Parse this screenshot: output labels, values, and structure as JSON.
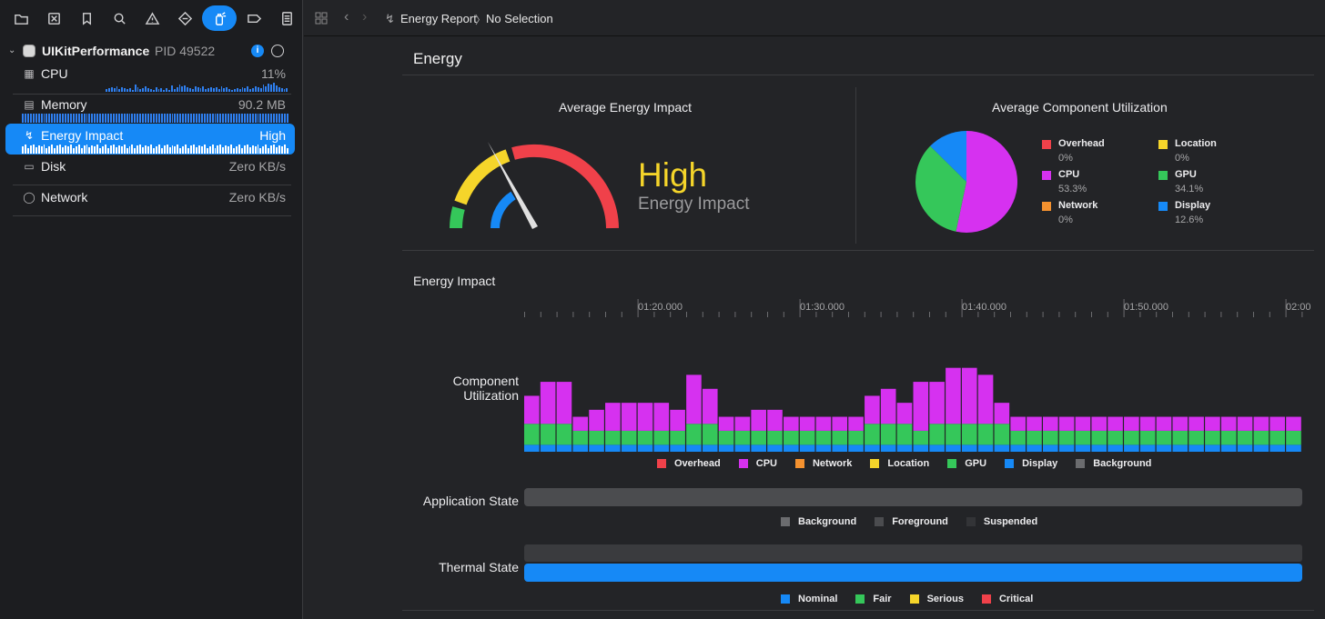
{
  "toolbar": {
    "icons": [
      "folder-icon",
      "close-box-icon",
      "bookmark-icon",
      "search-icon",
      "warning-icon",
      "diamond-icon",
      "spray-can-icon",
      "tag-icon",
      "report-icon"
    ],
    "active": "spray-can-icon"
  },
  "process": {
    "name": "UIKitPerformance",
    "pid": "PID 49522"
  },
  "gauges": [
    {
      "label": "CPU",
      "value": "11%",
      "icon": "cpu-icon",
      "spark": [
        0,
        0,
        0,
        0,
        0,
        0,
        0,
        0,
        0,
        0,
        0,
        0,
        0,
        0,
        0,
        0,
        0,
        0,
        0,
        0,
        0,
        0,
        0,
        0,
        0,
        0,
        0,
        0,
        0,
        0,
        0,
        0,
        3,
        4,
        5,
        4,
        6,
        3,
        5,
        4,
        3,
        4,
        2,
        8,
        5,
        3,
        4,
        6,
        4,
        3,
        2,
        5,
        3,
        4,
        2,
        4,
        2,
        7,
        3,
        5,
        8,
        6,
        7,
        5,
        4,
        3,
        6,
        5,
        4,
        6,
        3,
        4,
        5,
        4,
        5,
        3,
        6,
        4,
        5,
        3,
        2,
        3,
        4,
        3,
        5,
        4,
        6,
        3,
        4,
        6,
        5,
        4,
        8,
        6,
        9,
        8,
        10,
        7,
        5,
        4,
        3,
        4
      ]
    },
    {
      "label": "Memory",
      "value": "90.2 MB",
      "icon": "memory-icon"
    },
    {
      "label": "Energy Impact",
      "value": "High",
      "icon": "bolt-icon"
    },
    {
      "label": "Disk",
      "value": "Zero KB/s",
      "icon": "disk-icon"
    },
    {
      "label": "Network",
      "value": "Zero KB/s",
      "icon": "globe-icon"
    }
  ],
  "jumpbar": {
    "crumb1": "Energy Report",
    "crumb2": "No Selection",
    "sep": "〉"
  },
  "energy": {
    "title": "Energy",
    "avg_impact_title": "Average Energy Impact",
    "impact_level": "High",
    "impact_sub": "Energy Impact",
    "avg_util_title": "Average Component Utilization"
  },
  "utilization": [
    {
      "name": "Overhead",
      "pct": "0%",
      "value": 0,
      "color": "#f0414a"
    },
    {
      "name": "Location",
      "pct": "0%",
      "value": 0,
      "color": "#f5d52a"
    },
    {
      "name": "CPU",
      "pct": "53.3%",
      "value": 53.3,
      "color": "#d631f0"
    },
    {
      "name": "GPU",
      "pct": "34.1%",
      "value": 34.1,
      "color": "#35c75a"
    },
    {
      "name": "Network",
      "pct": "0%",
      "value": 0,
      "color": "#f5922f"
    },
    {
      "name": "Display",
      "pct": "12.6%",
      "value": 12.6,
      "color": "#1689f6"
    }
  ],
  "timeline": {
    "title": "Energy Impact",
    "ticks": [
      "01:20.000",
      "01:30.000",
      "01:40.000",
      "01:50.000",
      "02:00"
    ]
  },
  "labels": {
    "component_line1": "Component",
    "component_line2": "Utilization",
    "app_state": "Application State",
    "thermal_state": "Thermal State"
  },
  "cu_legend": [
    {
      "name": "Overhead",
      "color": "#f0414a"
    },
    {
      "name": "CPU",
      "color": "#d631f0"
    },
    {
      "name": "Network",
      "color": "#f5922f"
    },
    {
      "name": "Location",
      "color": "#f5d52a"
    },
    {
      "name": "GPU",
      "color": "#35c75a"
    },
    {
      "name": "Display",
      "color": "#1689f6"
    },
    {
      "name": "Background",
      "color": "#6b6c6f"
    }
  ],
  "app_state_legend": [
    {
      "name": "Background",
      "color": "#6b6c6f"
    },
    {
      "name": "Foreground",
      "color": "#4b4c4f"
    },
    {
      "name": "Suspended",
      "color": "#333437"
    }
  ],
  "thermal_legend": [
    {
      "name": "Nominal",
      "color": "#1689f6"
    },
    {
      "name": "Fair",
      "color": "#35c75a"
    },
    {
      "name": "Serious",
      "color": "#f5d52a"
    },
    {
      "name": "Critical",
      "color": "#f0414a"
    }
  ],
  "chart_data": {
    "type": "bar",
    "title": "Component Utilization",
    "stacked": true,
    "series": [
      {
        "name": "Display",
        "values": [
          1,
          1,
          1,
          1,
          1,
          1,
          1,
          1,
          1,
          1,
          1,
          1,
          1,
          1,
          1,
          1,
          1,
          1,
          1,
          1,
          1,
          1,
          1,
          1,
          1,
          1,
          1,
          1,
          1,
          1,
          1,
          1,
          1,
          1,
          1,
          1,
          1,
          1,
          1,
          1,
          1,
          1,
          1,
          1,
          1,
          1,
          1,
          1
        ]
      },
      {
        "name": "GPU",
        "values": [
          3,
          3,
          3,
          2,
          2,
          2,
          2,
          2,
          2,
          2,
          3,
          3,
          2,
          2,
          2,
          2,
          2,
          2,
          2,
          2,
          2,
          3,
          3,
          3,
          2,
          3,
          3,
          3,
          3,
          3,
          2,
          2,
          2,
          2,
          2,
          2,
          2,
          2,
          2,
          2,
          2,
          2,
          2,
          2,
          2,
          2,
          2,
          2
        ]
      },
      {
        "name": "CPU",
        "values": [
          4,
          6,
          6,
          2,
          3,
          4,
          4,
          4,
          4,
          3,
          7,
          5,
          2,
          2,
          3,
          3,
          2,
          2,
          2,
          2,
          2,
          4,
          5,
          3,
          7,
          6,
          8,
          8,
          7,
          3,
          2,
          2,
          2,
          2,
          2,
          2,
          2,
          2,
          2,
          2,
          2,
          2,
          2,
          2,
          2,
          2,
          2,
          2
        ]
      }
    ],
    "ylim": [
      0,
      13
    ]
  }
}
